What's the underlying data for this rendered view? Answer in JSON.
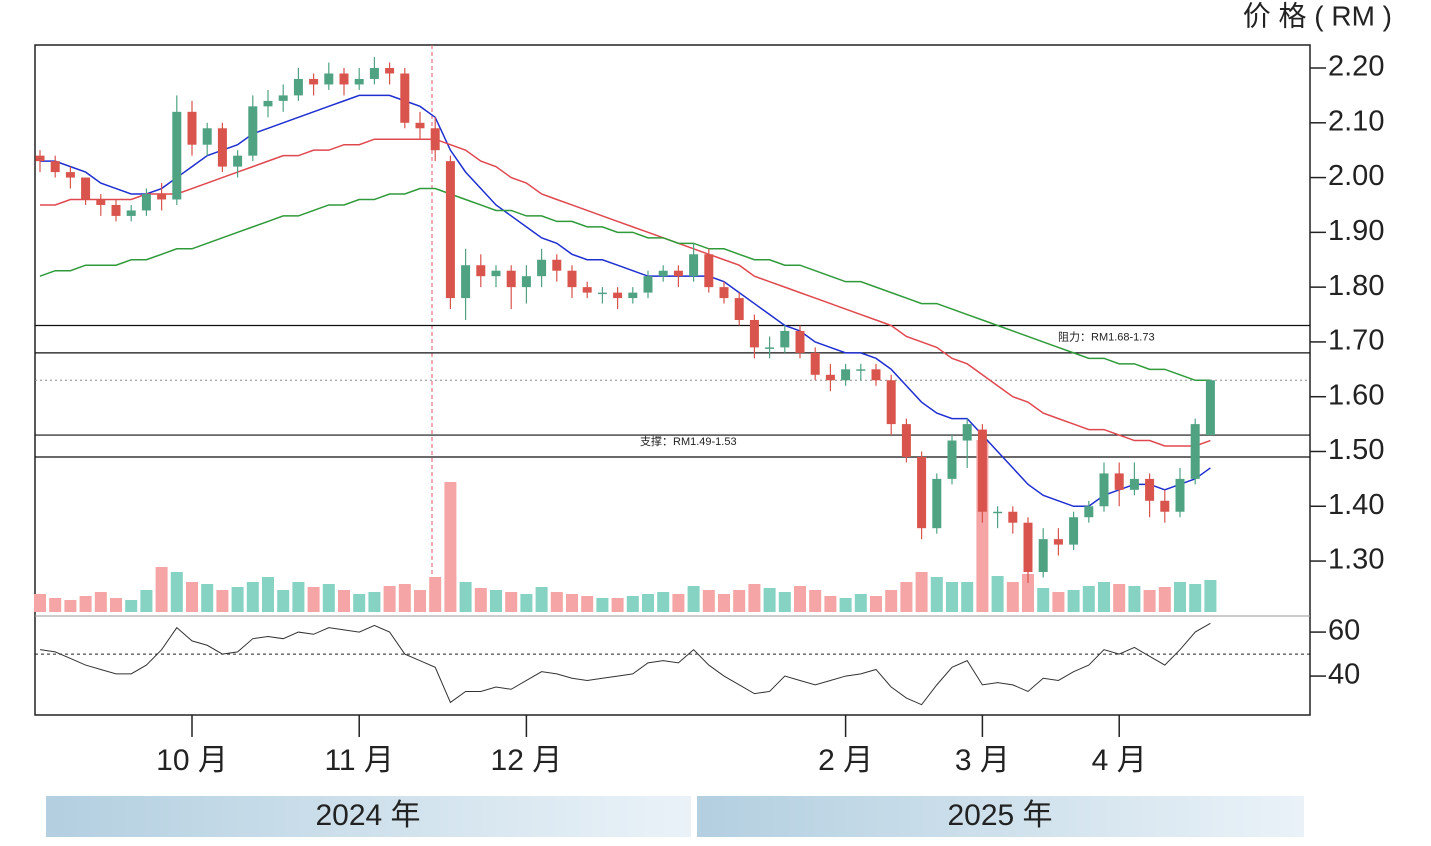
{
  "chart_data": {
    "type": "candlestick",
    "axis_label": "价 格 ( RM )",
    "categories": [
      null,
      null,
      null,
      null,
      null,
      null,
      null,
      null,
      null,
      null,
      "10 月",
      null,
      null,
      null,
      null,
      null,
      null,
      null,
      null,
      null,
      null,
      "11 月",
      null,
      null,
      null,
      null,
      null,
      null,
      null,
      null,
      null,
      null,
      "12 月",
      null,
      null,
      null,
      null,
      null,
      null,
      null,
      null,
      null,
      null,
      null,
      null,
      null,
      null,
      null,
      null,
      null,
      null,
      null,
      null,
      "2 月",
      null,
      null,
      null,
      null,
      null,
      null,
      null,
      null,
      "3 月",
      null,
      null,
      null,
      null,
      null,
      null,
      null,
      null,
      "4 月",
      null,
      null,
      null,
      null,
      null,
      null
    ],
    "open": [
      2.04,
      2.03,
      2.01,
      2.0,
      1.96,
      1.95,
      1.93,
      1.94,
      1.97,
      1.96,
      2.12,
      2.06,
      2.09,
      2.02,
      2.04,
      2.13,
      2.14,
      2.15,
      2.18,
      2.17,
      2.19,
      2.17,
      2.18,
      2.2,
      2.19,
      2.1,
      2.09,
      2.03,
      1.78,
      1.84,
      1.82,
      1.83,
      1.8,
      1.82,
      1.85,
      1.83,
      1.8,
      1.79,
      1.79,
      1.78,
      1.79,
      1.82,
      1.83,
      1.82,
      1.86,
      1.8,
      1.78,
      1.74,
      1.69,
      1.69,
      1.72,
      1.68,
      1.64,
      1.63,
      1.65,
      1.65,
      1.63,
      1.55,
      1.49,
      1.36,
      1.45,
      1.52,
      1.54,
      1.39,
      1.39,
      1.37,
      1.28,
      1.34,
      1.33,
      1.38,
      1.4,
      1.46,
      1.43,
      1.45,
      1.41,
      1.39,
      1.45,
      1.53
    ],
    "high": [
      2.05,
      2.04,
      2.02,
      2.0,
      1.97,
      1.96,
      1.95,
      1.98,
      1.99,
      2.15,
      2.14,
      2.1,
      2.1,
      2.05,
      2.15,
      2.16,
      2.17,
      2.2,
      2.19,
      2.21,
      2.2,
      2.2,
      2.22,
      2.21,
      2.2,
      2.12,
      2.11,
      2.04,
      1.87,
      1.86,
      1.84,
      1.84,
      1.84,
      1.87,
      1.86,
      1.84,
      1.81,
      1.8,
      1.8,
      1.8,
      1.83,
      1.84,
      1.84,
      1.88,
      1.87,
      1.81,
      1.79,
      1.75,
      1.71,
      1.73,
      1.73,
      1.69,
      1.66,
      1.66,
      1.66,
      1.66,
      1.64,
      1.56,
      1.5,
      1.46,
      1.53,
      1.56,
      1.55,
      1.4,
      1.4,
      1.38,
      1.36,
      1.36,
      1.39,
      1.41,
      1.48,
      1.48,
      1.48,
      1.46,
      1.43,
      1.47,
      1.56,
      1.63
    ],
    "low": [
      2.01,
      2.0,
      1.98,
      1.95,
      1.93,
      1.92,
      1.92,
      1.93,
      1.94,
      1.95,
      2.04,
      2.04,
      2.01,
      2.0,
      2.03,
      2.11,
      2.12,
      2.14,
      2.15,
      2.16,
      2.15,
      2.16,
      2.17,
      2.17,
      2.09,
      2.07,
      2.03,
      1.76,
      1.74,
      1.8,
      1.8,
      1.76,
      1.77,
      1.8,
      1.81,
      1.78,
      1.78,
      1.77,
      1.76,
      1.77,
      1.78,
      1.81,
      1.8,
      1.81,
      1.79,
      1.77,
      1.73,
      1.67,
      1.67,
      1.68,
      1.67,
      1.63,
      1.61,
      1.62,
      1.63,
      1.62,
      1.53,
      1.48,
      1.34,
      1.35,
      1.44,
      1.47,
      1.37,
      1.36,
      1.35,
      1.26,
      1.27,
      1.31,
      1.32,
      1.37,
      1.39,
      1.4,
      1.42,
      1.38,
      1.37,
      1.38,
      1.44,
      1.53
    ],
    "close": [
      2.03,
      2.01,
      2.0,
      1.96,
      1.95,
      1.93,
      1.94,
      1.97,
      1.96,
      2.12,
      2.06,
      2.09,
      2.02,
      2.04,
      2.13,
      2.14,
      2.15,
      2.18,
      2.17,
      2.19,
      2.17,
      2.18,
      2.2,
      2.19,
      2.1,
      2.09,
      2.05,
      1.78,
      1.84,
      1.82,
      1.83,
      1.8,
      1.82,
      1.85,
      1.83,
      1.8,
      1.79,
      1.79,
      1.78,
      1.79,
      1.82,
      1.83,
      1.82,
      1.86,
      1.8,
      1.78,
      1.74,
      1.69,
      1.69,
      1.72,
      1.68,
      1.64,
      1.63,
      1.65,
      1.65,
      1.63,
      1.55,
      1.49,
      1.36,
      1.45,
      1.52,
      1.55,
      1.39,
      1.39,
      1.37,
      1.28,
      1.34,
      1.33,
      1.38,
      1.4,
      1.46,
      1.43,
      1.45,
      1.41,
      1.39,
      1.45,
      1.55,
      1.63
    ],
    "up_color": "#4fa383",
    "down_color": "#d9544d",
    "ylim": [
      1.207,
      2.242
    ],
    "yticks": [
      {
        "value": 2.2,
        "label": "2.20"
      },
      {
        "value": 2.1,
        "label": "2.10"
      },
      {
        "value": 2.0,
        "label": "2.00"
      },
      {
        "value": 1.9,
        "label": "1.90"
      },
      {
        "value": 1.8,
        "label": "1.80"
      },
      {
        "value": 1.7,
        "label": "1.70"
      },
      {
        "value": 1.6,
        "label": "1.60"
      },
      {
        "value": 1.5,
        "label": "1.50"
      },
      {
        "value": 1.4,
        "label": "1.40"
      },
      {
        "value": 1.3,
        "label": "1.30"
      }
    ],
    "moving_averages": [
      {
        "color": "#1f2fd0",
        "values": [
          2.03,
          2.03,
          2.02,
          2.01,
          1.99,
          1.98,
          1.97,
          1.97,
          1.98,
          2.0,
          2.02,
          2.04,
          2.05,
          2.06,
          2.08,
          2.09,
          2.1,
          2.11,
          2.12,
          2.13,
          2.14,
          2.15,
          2.15,
          2.15,
          2.14,
          2.13,
          2.11,
          2.05,
          2.01,
          1.98,
          1.95,
          1.93,
          1.91,
          1.89,
          1.88,
          1.86,
          1.85,
          1.85,
          1.84,
          1.83,
          1.82,
          1.82,
          1.82,
          1.82,
          1.82,
          1.81,
          1.79,
          1.77,
          1.75,
          1.73,
          1.72,
          1.7,
          1.69,
          1.68,
          1.68,
          1.67,
          1.65,
          1.62,
          1.59,
          1.57,
          1.56,
          1.56,
          1.53,
          1.5,
          1.47,
          1.44,
          1.42,
          1.41,
          1.4,
          1.4,
          1.42,
          1.43,
          1.44,
          1.44,
          1.43,
          1.44,
          1.45,
          1.47
        ]
      },
      {
        "color": "#e0484f",
        "values": [
          1.95,
          1.95,
          1.96,
          1.96,
          1.96,
          1.96,
          1.96,
          1.97,
          1.97,
          1.97,
          1.98,
          1.99,
          2.0,
          2.01,
          2.02,
          2.03,
          2.04,
          2.04,
          2.05,
          2.05,
          2.06,
          2.06,
          2.07,
          2.07,
          2.07,
          2.07,
          2.07,
          2.06,
          2.05,
          2.03,
          2.02,
          2.0,
          1.99,
          1.97,
          1.96,
          1.95,
          1.94,
          1.93,
          1.92,
          1.91,
          1.9,
          1.89,
          1.88,
          1.87,
          1.86,
          1.85,
          1.84,
          1.82,
          1.81,
          1.8,
          1.79,
          1.78,
          1.77,
          1.76,
          1.75,
          1.74,
          1.73,
          1.71,
          1.7,
          1.69,
          1.67,
          1.66,
          1.64,
          1.62,
          1.6,
          1.59,
          1.57,
          1.56,
          1.55,
          1.54,
          1.54,
          1.53,
          1.52,
          1.52,
          1.51,
          1.51,
          1.51,
          1.52
        ]
      },
      {
        "color": "#2f9a3a",
        "values": [
          1.82,
          1.83,
          1.83,
          1.84,
          1.84,
          1.84,
          1.85,
          1.85,
          1.86,
          1.87,
          1.87,
          1.88,
          1.89,
          1.9,
          1.91,
          1.92,
          1.93,
          1.93,
          1.94,
          1.95,
          1.95,
          1.96,
          1.96,
          1.97,
          1.97,
          1.98,
          1.98,
          1.97,
          1.96,
          1.95,
          1.94,
          1.94,
          1.93,
          1.93,
          1.92,
          1.92,
          1.91,
          1.91,
          1.9,
          1.9,
          1.89,
          1.89,
          1.88,
          1.88,
          1.87,
          1.87,
          1.86,
          1.85,
          1.85,
          1.84,
          1.84,
          1.83,
          1.82,
          1.81,
          1.81,
          1.8,
          1.79,
          1.78,
          1.77,
          1.77,
          1.76,
          1.75,
          1.74,
          1.73,
          1.72,
          1.71,
          1.7,
          1.69,
          1.68,
          1.67,
          1.67,
          1.66,
          1.66,
          1.65,
          1.65,
          1.64,
          1.63,
          1.63
        ]
      }
    ],
    "volume": {
      "up_color": "#86d3c4",
      "down_color": "#f5a5a5",
      "values": [
        18,
        14,
        12,
        16,
        20,
        14,
        12,
        22,
        45,
        40,
        30,
        28,
        22,
        25,
        30,
        35,
        22,
        30,
        25,
        28,
        22,
        18,
        20,
        26,
        28,
        22,
        35,
        130,
        30,
        24,
        22,
        20,
        18,
        25,
        20,
        18,
        16,
        14,
        14,
        16,
        18,
        20,
        18,
        26,
        22,
        18,
        22,
        28,
        24,
        20,
        26,
        22,
        16,
        14,
        18,
        16,
        22,
        30,
        40,
        35,
        30,
        30,
        172,
        36,
        30,
        38,
        24,
        20,
        22,
        26,
        30,
        28,
        26,
        22,
        25,
        30,
        28,
        32
      ]
    },
    "rsi": {
      "color": "#333333",
      "ylim": [
        22.3,
        66.4
      ],
      "yticks": [
        60,
        40
      ],
      "midline": 50,
      "values": [
        52,
        51,
        48,
        45,
        43,
        41,
        41,
        45,
        52,
        62,
        56,
        54,
        50,
        51,
        57,
        58,
        57,
        60,
        59,
        62,
        61,
        60,
        63,
        60,
        50,
        47,
        44,
        28,
        33,
        33,
        35,
        34,
        38,
        42,
        41,
        39,
        38,
        39,
        40,
        41,
        46,
        47,
        46,
        52,
        45,
        40,
        36,
        32,
        33,
        40,
        38,
        36,
        38,
        40,
        41,
        43,
        35,
        30,
        27,
        36,
        44,
        47,
        36,
        37,
        36,
        33,
        39,
        38,
        42,
        45,
        52,
        50,
        53,
        49,
        45,
        52,
        60,
        64
      ]
    },
    "resistance": [
      1.68,
      1.73
    ],
    "support": [
      1.49,
      1.53
    ],
    "last_price": 1.63,
    "annotations": {
      "resistance": "阻力：RM1.68-1.73",
      "support": "支撑：RM1.49-1.53"
    },
    "years": [
      "2024 年",
      "2025 年"
    ]
  }
}
